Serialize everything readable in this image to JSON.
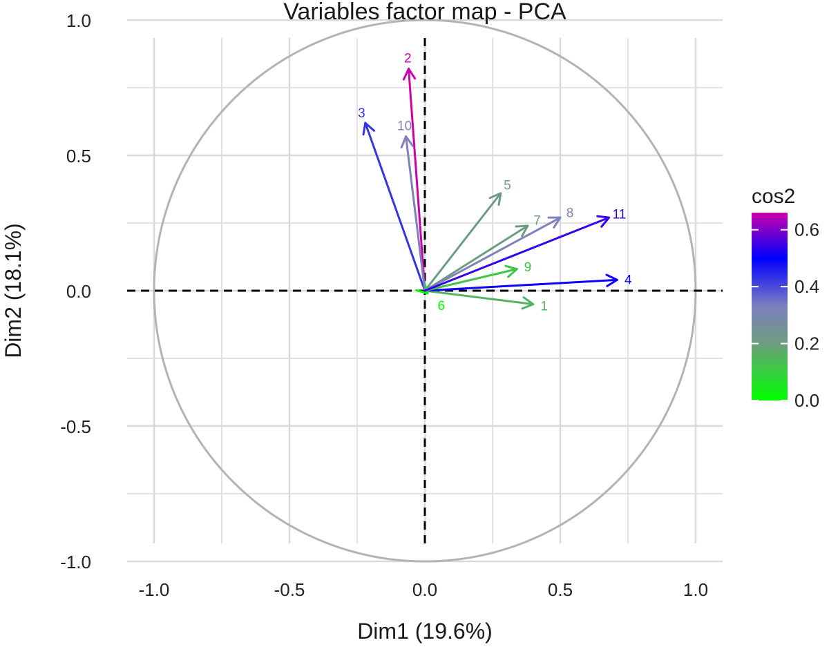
{
  "chart_data": {
    "type": "scatter",
    "subtype": "pca-variable-correlation-circle",
    "title": "Variables factor map - PCA",
    "xlabel": "Dim1 (19.6%)",
    "ylabel": "Dim2 (18.1%)",
    "xlim": [
      -1.1,
      1.1
    ],
    "ylim": [
      -1.1,
      1.1
    ],
    "xticks": [
      {
        "value": -1.0,
        "label": "-1.0"
      },
      {
        "value": -0.5,
        "label": "-0.5"
      },
      {
        "value": 0.0,
        "label": "0.0"
      },
      {
        "value": 0.5,
        "label": "0.5"
      },
      {
        "value": 1.0,
        "label": "1.0"
      }
    ],
    "yticks": [
      {
        "value": 1.0,
        "label": "1.0"
      },
      {
        "value": 0.5,
        "label": "0.5"
      },
      {
        "value": 0.0,
        "label": "0.0"
      },
      {
        "value": -0.5,
        "label": "-0.5"
      },
      {
        "value": -1.0,
        "label": "-1.0"
      }
    ],
    "grid": true,
    "unit_circle": true,
    "reference_lines": {
      "x": 0,
      "y": 0,
      "style": "dashed"
    },
    "circle_color": "#b3b3b3",
    "grid_color": "#d9d9d9",
    "legend": {
      "title": "cos2",
      "position": "right",
      "range": [
        0.0,
        0.66
      ],
      "ticks": [
        {
          "value": 0.6,
          "label": "0.6"
        },
        {
          "value": 0.4,
          "label": "0.4"
        },
        {
          "value": 0.2,
          "label": "0.2"
        },
        {
          "value": 0.0,
          "label": "0.0"
        }
      ],
      "gradient": [
        {
          "value": 0.0,
          "color": "#00ff00"
        },
        {
          "value": 0.2,
          "color": "#6c9d7c"
        },
        {
          "value": 0.33,
          "color": "#7f7fc0"
        },
        {
          "value": 0.5,
          "color": "#0000ff"
        },
        {
          "value": 0.66,
          "color": "#cc00aa"
        }
      ]
    },
    "variables": [
      {
        "label": "1",
        "x": 0.4,
        "y": -0.05,
        "cos2": 0.16
      },
      {
        "label": "2",
        "x": -0.06,
        "y": 0.82,
        "cos2": 0.67
      },
      {
        "label": "3",
        "x": -0.22,
        "y": 0.62,
        "cos2": 0.43
      },
      {
        "label": "4",
        "x": 0.71,
        "y": 0.04,
        "cos2": 0.51
      },
      {
        "label": "5",
        "x": 0.28,
        "y": 0.36,
        "cos2": 0.21
      },
      {
        "label": "6",
        "x": 0.01,
        "y": -0.01,
        "cos2": 0.0
      },
      {
        "label": "7",
        "x": 0.38,
        "y": 0.24,
        "cos2": 0.2
      },
      {
        "label": "8",
        "x": 0.5,
        "y": 0.27,
        "cos2": 0.32
      },
      {
        "label": "9",
        "x": 0.34,
        "y": 0.08,
        "cos2": 0.12
      },
      {
        "label": "10",
        "x": -0.07,
        "y": 0.57,
        "cos2": 0.33
      },
      {
        "label": "11",
        "x": 0.68,
        "y": 0.27,
        "cos2": 0.54
      }
    ]
  }
}
